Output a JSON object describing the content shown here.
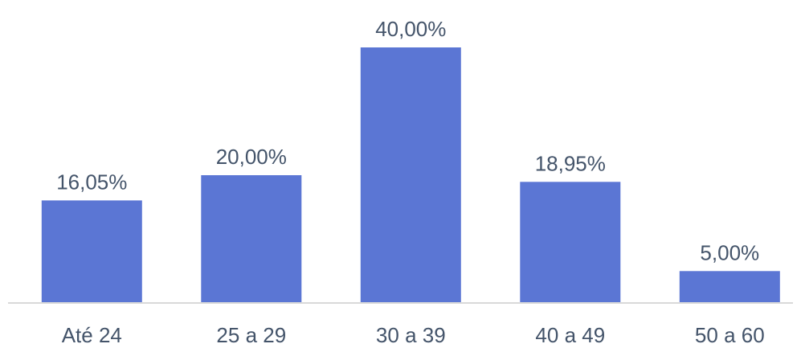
{
  "chart_data": {
    "type": "bar",
    "categories": [
      "Até 24",
      "25 a 29",
      "30 a 39",
      "40 a 49",
      "50 a 60"
    ],
    "values": [
      16.05,
      20.0,
      40.0,
      18.95,
      5.0
    ],
    "data_labels": [
      "16,05%",
      "20,00%",
      "40,00%",
      "18,95%",
      "5,00%"
    ],
    "title": "",
    "xlabel": "",
    "ylabel": "",
    "ylim": [
      0,
      40
    ],
    "grid": false,
    "legend": "none",
    "colors": {
      "bar": "#5b76d4",
      "text": "#44546a",
      "axis": "#d9d9d9"
    }
  }
}
